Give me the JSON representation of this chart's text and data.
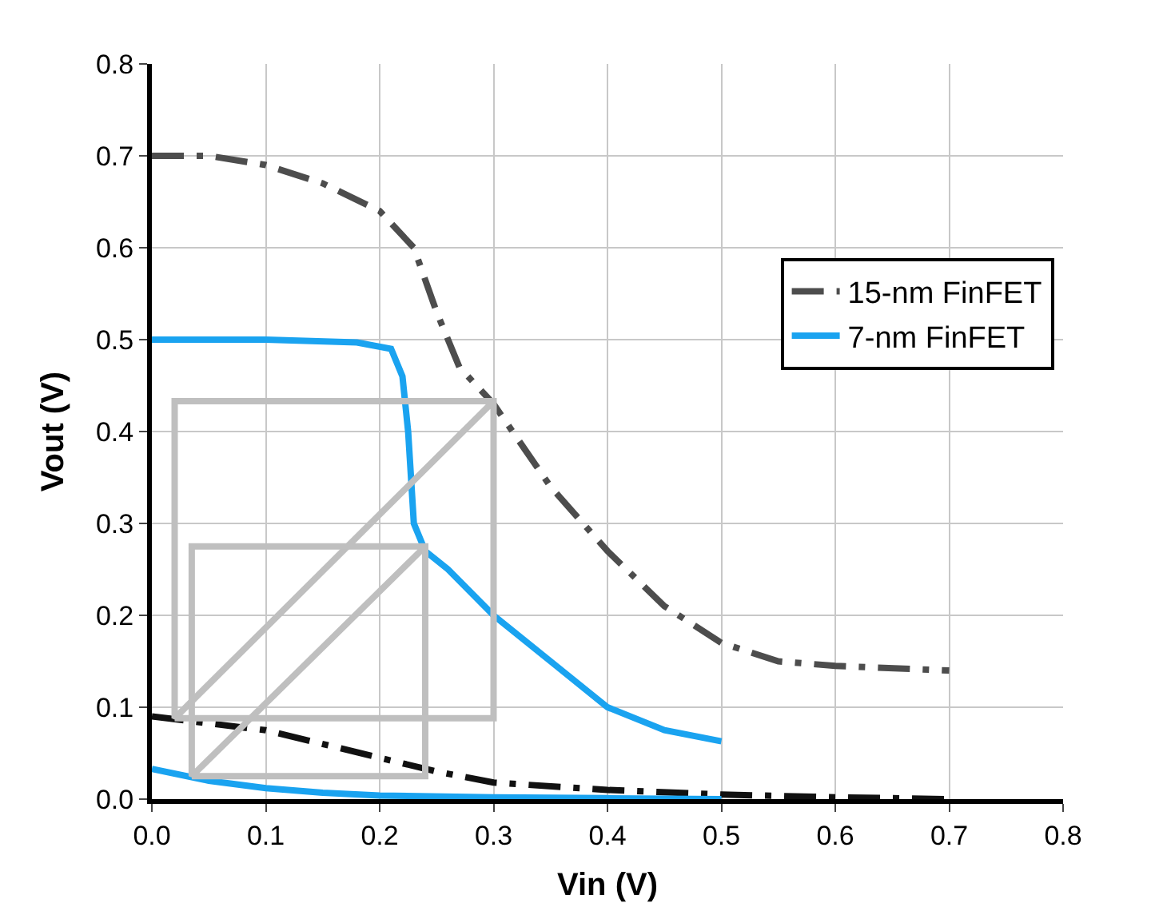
{
  "chart_data": {
    "type": "line",
    "xlabel": "Vin (V)",
    "ylabel": "Vout (V)",
    "xlim": [
      0,
      0.8
    ],
    "ylim": [
      0,
      0.8
    ],
    "xticks": [
      {
        "value": 0,
        "label": "0.0"
      },
      0.1,
      0.2,
      0.3,
      0.4,
      0.5,
      0.6,
      0.7,
      0.8
    ],
    "yticks": [
      {
        "value": 0,
        "label": "0.0"
      },
      0.1,
      0.2,
      0.3,
      0.4,
      0.5,
      0.6,
      0.7,
      0.8
    ],
    "grid": true,
    "legend": "right",
    "marker": "none",
    "series": [
      {
        "name": "15-nm FinFET",
        "color": "#4d4d4d",
        "line_style": "dashdot",
        "x": [
          0,
          0.05,
          0.1,
          0.15,
          0.2,
          0.23,
          0.25,
          0.27,
          0.3,
          0.35,
          0.4,
          0.45,
          0.5,
          0.55,
          0.6,
          0.7
        ],
        "values": [
          0.7,
          0.7,
          0.69,
          0.67,
          0.64,
          0.6,
          0.53,
          0.47,
          0.43,
          0.34,
          0.27,
          0.21,
          0.17,
          0.15,
          0.145,
          0.14
        ]
      },
      {
        "name": "7-nm FinFET",
        "color": "#1aa3f0",
        "line_style": "solid",
        "x": [
          0,
          0.1,
          0.18,
          0.21,
          0.22,
          0.225,
          0.23,
          0.24,
          0.26,
          0.3,
          0.35,
          0.4,
          0.45,
          0.5
        ],
        "values": [
          0.5,
          0.5,
          0.497,
          0.49,
          0.46,
          0.4,
          0.3,
          0.27,
          0.25,
          0.2,
          0.15,
          0.1,
          0.075,
          0.063
        ]
      },
      {
        "color": "#111111",
        "line_style": "dashdot",
        "x": [
          0,
          0.1,
          0.2,
          0.25,
          0.3,
          0.4,
          0.5,
          0.6,
          0.7
        ],
        "values": [
          0.09,
          0.075,
          0.045,
          0.03,
          0.018,
          0.01,
          0.005,
          0.002,
          0.0
        ]
      },
      {
        "color": "#1aa3f0",
        "line_style": "solid",
        "x": [
          0,
          0.05,
          0.1,
          0.15,
          0.2,
          0.3,
          0.4,
          0.5
        ],
        "values": [
          0.033,
          0.02,
          0.012,
          0.007,
          0.004,
          0.002,
          0.001,
          0.0
        ]
      },
      {
        "color": "#bfbfbf",
        "line_style": "solid",
        "x": [
          0.02,
          0.3,
          0.3,
          0.02,
          0.02,
          0.3
        ],
        "values": [
          0.088,
          0.088,
          0.433,
          0.433,
          0.088,
          0.433
        ]
      },
      {
        "color": "#bfbfbf",
        "line_style": "solid",
        "x": [
          0.035,
          0.24,
          0.24,
          0.035,
          0.035,
          0.24
        ],
        "values": [
          0.025,
          0.025,
          0.275,
          0.275,
          0.025,
          0.275
        ]
      }
    ]
  }
}
